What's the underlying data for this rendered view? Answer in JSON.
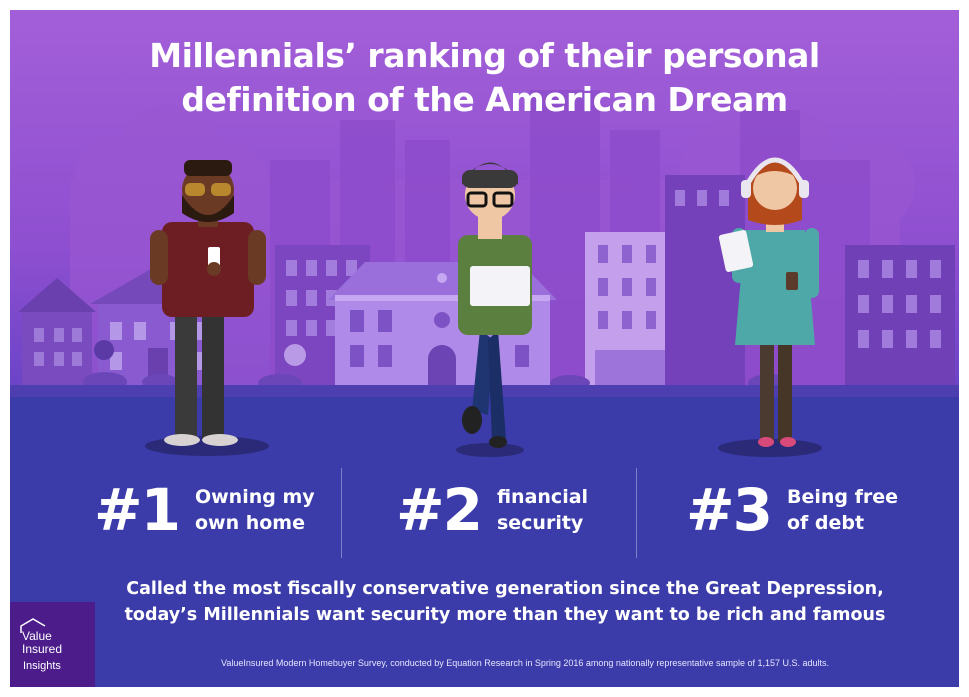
{
  "title": {
    "line1": "Millennials’ ranking of their personal",
    "line2": "definition of the American Dream"
  },
  "ranks": [
    {
      "number": "#1",
      "line1": "Owning my",
      "line2": "own home"
    },
    {
      "number": "#2",
      "line1": "financial",
      "line2": "security"
    },
    {
      "number": "#3",
      "line1": "Being free",
      "line2": "of debt"
    }
  ],
  "caption": {
    "line1": "Called the most fiscally conservative generation since the Great Depression,",
    "line2": "today’s Millennials want security more than they want to be rich and famous"
  },
  "footnote": "ValueInsured Modern Homebuyer Survey, conducted by Equation Research in Spring 2016 among nationally representative sample of 1,157 U.S. adults.",
  "logo": {
    "line1": "Value",
    "line2": "Insured",
    "line3": "Insights"
  },
  "colors": {
    "background_top": "#a35fd8",
    "background_ground": "#3a3aa8",
    "text": "#ffffff",
    "logo_bg": "#4b1c8a"
  }
}
